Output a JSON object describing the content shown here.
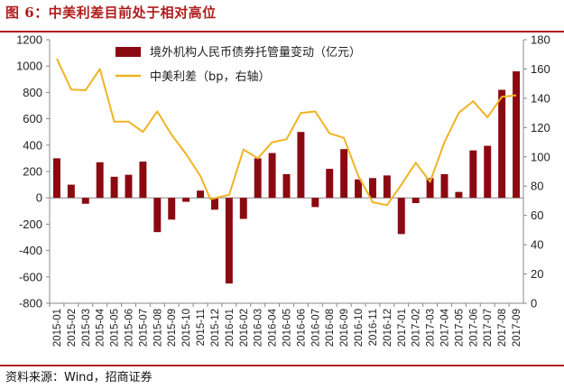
{
  "figure": {
    "title": "图 6：中美利差目前处于相对高位",
    "source": "资料来源：Wind，招商证券",
    "title_color": "#b01c1c"
  },
  "chart_data": {
    "type": "bar+line",
    "categories": [
      "2015-01",
      "2015-02",
      "2015-03",
      "2015-04",
      "2015-05",
      "2015-06",
      "2015-07",
      "2015-08",
      "2015-09",
      "2015-10",
      "2015-11",
      "2015-12",
      "2016-01",
      "2016-02",
      "2016-03",
      "2016-04",
      "2016-05",
      "2016-06",
      "2016-07",
      "2016-08",
      "2016-09",
      "2016-10",
      "2016-11",
      "2016-12",
      "2017-01",
      "2017-02",
      "2017-03",
      "2017-04",
      "2017-05",
      "2017-06",
      "2017-07",
      "2017-08",
      "2017-09"
    ],
    "xtick_labels": [
      "2015-01",
      "2015-02",
      "2015-03",
      "2015-04",
      "2015-05",
      "2015-06",
      "2015-07",
      "2015-08",
      "2015-09",
      "2015-10",
      "2015-11",
      "2015-12",
      "2016-01",
      "2016-02",
      "2016-03",
      "2016-04",
      "2016-05",
      "2016-06",
      "2016-07",
      "2016-08",
      "2016-09",
      "2016-10",
      "2016-11",
      "2016-12",
      "2017-01",
      "2017-02",
      "2017-03",
      "2017-04",
      "2017-05",
      "2017-06",
      "2017-07",
      "2017-08",
      "2017-09"
    ],
    "series": [
      {
        "name": "境外机构人民币债券托管量变动（亿元）",
        "kind": "bar",
        "axis": "left",
        "color": "#8b0a12",
        "values": [
          300,
          100,
          -45,
          270,
          160,
          175,
          275,
          -260,
          -165,
          -30,
          55,
          -90,
          -650,
          -160,
          300,
          340,
          180,
          500,
          -70,
          220,
          370,
          140,
          150,
          170,
          -275,
          -40,
          150,
          180,
          45,
          360,
          395,
          820,
          960
        ]
      },
      {
        "name": "中美利差（bp，右轴）",
        "kind": "line",
        "axis": "right",
        "color": "#f0b323",
        "points": [
          {
            "x": 0,
            "y": 167
          },
          {
            "x": 1,
            "y": 146
          },
          {
            "x": 2,
            "y": 145.5
          },
          {
            "x": 3,
            "y": 160
          },
          {
            "x": 4,
            "y": 124
          },
          {
            "x": 5,
            "y": 124
          },
          {
            "x": 6,
            "y": 117
          },
          {
            "x": 7,
            "y": 131
          },
          {
            "x": 8,
            "y": 115
          },
          {
            "x": 9,
            "y": 102
          },
          {
            "x": 10,
            "y": 87
          },
          {
            "x": 10.7,
            "y": 71
          },
          {
            "x": 11.5,
            "y": 73
          },
          {
            "x": 12,
            "y": 74
          },
          {
            "x": 13,
            "y": 105
          },
          {
            "x": 14,
            "y": 99
          },
          {
            "x": 15,
            "y": 110
          },
          {
            "x": 16,
            "y": 112
          },
          {
            "x": 17,
            "y": 130
          },
          {
            "x": 18,
            "y": 131
          },
          {
            "x": 19,
            "y": 116
          },
          {
            "x": 20,
            "y": 113
          },
          {
            "x": 21,
            "y": 87
          },
          {
            "x": 22,
            "y": 69
          },
          {
            "x": 23,
            "y": 67
          },
          {
            "x": 24,
            "y": 81
          },
          {
            "x": 25,
            "y": 96
          },
          {
            "x": 26,
            "y": 83
          },
          {
            "x": 27,
            "y": 110
          },
          {
            "x": 28,
            "y": 130
          },
          {
            "x": 29,
            "y": 138
          },
          {
            "x": 30,
            "y": 127
          },
          {
            "x": 31,
            "y": 141
          },
          {
            "x": 32,
            "y": 142
          }
        ]
      }
    ],
    "y_left": {
      "min": -800,
      "max": 1200,
      "ticks": [
        -800,
        -600,
        -400,
        -200,
        0,
        200,
        400,
        600,
        800,
        1000,
        1200
      ]
    },
    "y_right": {
      "min": 0,
      "max": 180,
      "ticks": [
        0,
        20,
        40,
        60,
        80,
        100,
        120,
        140,
        160,
        180
      ]
    },
    "legend_position": "top-center",
    "grid": false
  }
}
